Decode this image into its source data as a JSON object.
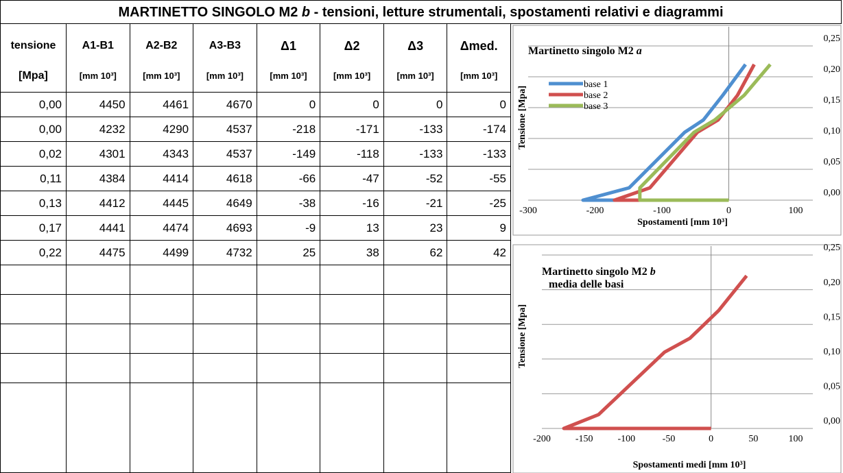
{
  "title": {
    "pre": "MARTINETTO SINGOLO M2 ",
    "em": "b",
    "post": " - tensioni, letture strumentali, spostamenti relativi e diagrammi"
  },
  "table": {
    "headers": [
      "tensione",
      "A1-B1",
      "A2-B2",
      "A3-B3",
      "Δ1",
      "Δ2",
      "Δ3",
      "Δmed."
    ],
    "units": [
      "[Mpa]",
      "[mm 10³]",
      "[mm 10³]",
      "[mm 10³]",
      "[mm 10³]",
      "[mm 10³]",
      "[mm 10³]",
      "[mm 10³]"
    ],
    "rows": [
      [
        "0,00",
        "4450",
        "4461",
        "4670",
        "0",
        "0",
        "0",
        "0"
      ],
      [
        "0,00",
        "4232",
        "4290",
        "4537",
        "-218",
        "-171",
        "-133",
        "-174"
      ],
      [
        "0,02",
        "4301",
        "4343",
        "4537",
        "-149",
        "-118",
        "-133",
        "-133"
      ],
      [
        "0,11",
        "4384",
        "4414",
        "4618",
        "-66",
        "-47",
        "-52",
        "-55"
      ],
      [
        "0,13",
        "4412",
        "4445",
        "4649",
        "-38",
        "-16",
        "-21",
        "-25"
      ],
      [
        "0,17",
        "4441",
        "4474",
        "4693",
        "-9",
        "13",
        "23",
        "9"
      ],
      [
        "0,22",
        "4475",
        "4499",
        "4732",
        "25",
        "38",
        "62",
        "42"
      ]
    ]
  },
  "chart_data": [
    {
      "type": "line",
      "title": "Martinetto singolo M2 ",
      "title_em": "a",
      "xlabel": "Spostamenti [mm 10³]",
      "ylabel": "Tensione [Mpa]",
      "xlim": [
        -300,
        100
      ],
      "xticks": [
        -300,
        -200,
        -100,
        0,
        100
      ],
      "ylim": [
        0,
        0.25
      ],
      "yticks": [
        {
          "value": 0,
          "label": "0,00"
        },
        {
          "value": 0.05,
          "label": "0,05"
        },
        {
          "value": 0.1,
          "label": "0,10"
        },
        {
          "value": 0.15,
          "label": "0,15"
        },
        {
          "value": 0.2,
          "label": "0,20"
        },
        {
          "value": 0.25,
          "label": "0,25"
        }
      ],
      "grid": true,
      "legend": "upper-left",
      "series": [
        {
          "name": "base 1",
          "color": "#4f8fd0",
          "x": [
            0,
            -218,
            -149,
            -66,
            -38,
            -9,
            25
          ],
          "values": [
            0,
            0,
            0.02,
            0.11,
            0.13,
            0.17,
            0.22
          ]
        },
        {
          "name": "base 2",
          "color": "#d0504f",
          "x": [
            0,
            -171,
            -118,
            -47,
            -16,
            13,
            38
          ],
          "values": [
            0,
            0,
            0.02,
            0.11,
            0.13,
            0.17,
            0.22
          ]
        },
        {
          "name": "base 3",
          "color": "#9bbb59",
          "x": [
            0,
            -133,
            -133,
            -52,
            -21,
            23,
            62
          ],
          "values": [
            0,
            0,
            0.02,
            0.11,
            0.13,
            0.17,
            0.22
          ]
        }
      ]
    },
    {
      "type": "line",
      "title": "Martinetto singolo M2 ",
      "title_em": "b",
      "subtitle": "media delle basi",
      "xlabel": "Spostamenti medi [mm 10³]",
      "ylabel": "Tensione [Mpa]",
      "xlim": [
        -200,
        100
      ],
      "xticks": [
        -200,
        -150,
        -100,
        -50,
        0,
        50,
        100
      ],
      "ylim": [
        0,
        0.25
      ],
      "yticks": [
        {
          "value": 0,
          "label": "0,00"
        },
        {
          "value": 0.05,
          "label": "0,05"
        },
        {
          "value": 0.1,
          "label": "0,10"
        },
        {
          "value": 0.15,
          "label": "0,15"
        },
        {
          "value": 0.2,
          "label": "0,20"
        },
        {
          "value": 0.25,
          "label": "0,25"
        }
      ],
      "grid": true,
      "series": [
        {
          "color": "#d0504f",
          "x": [
            0,
            -174,
            -133,
            -55,
            -25,
            9,
            42
          ],
          "values": [
            0,
            0,
            0.02,
            0.11,
            0.13,
            0.17,
            0.22
          ]
        }
      ]
    }
  ]
}
